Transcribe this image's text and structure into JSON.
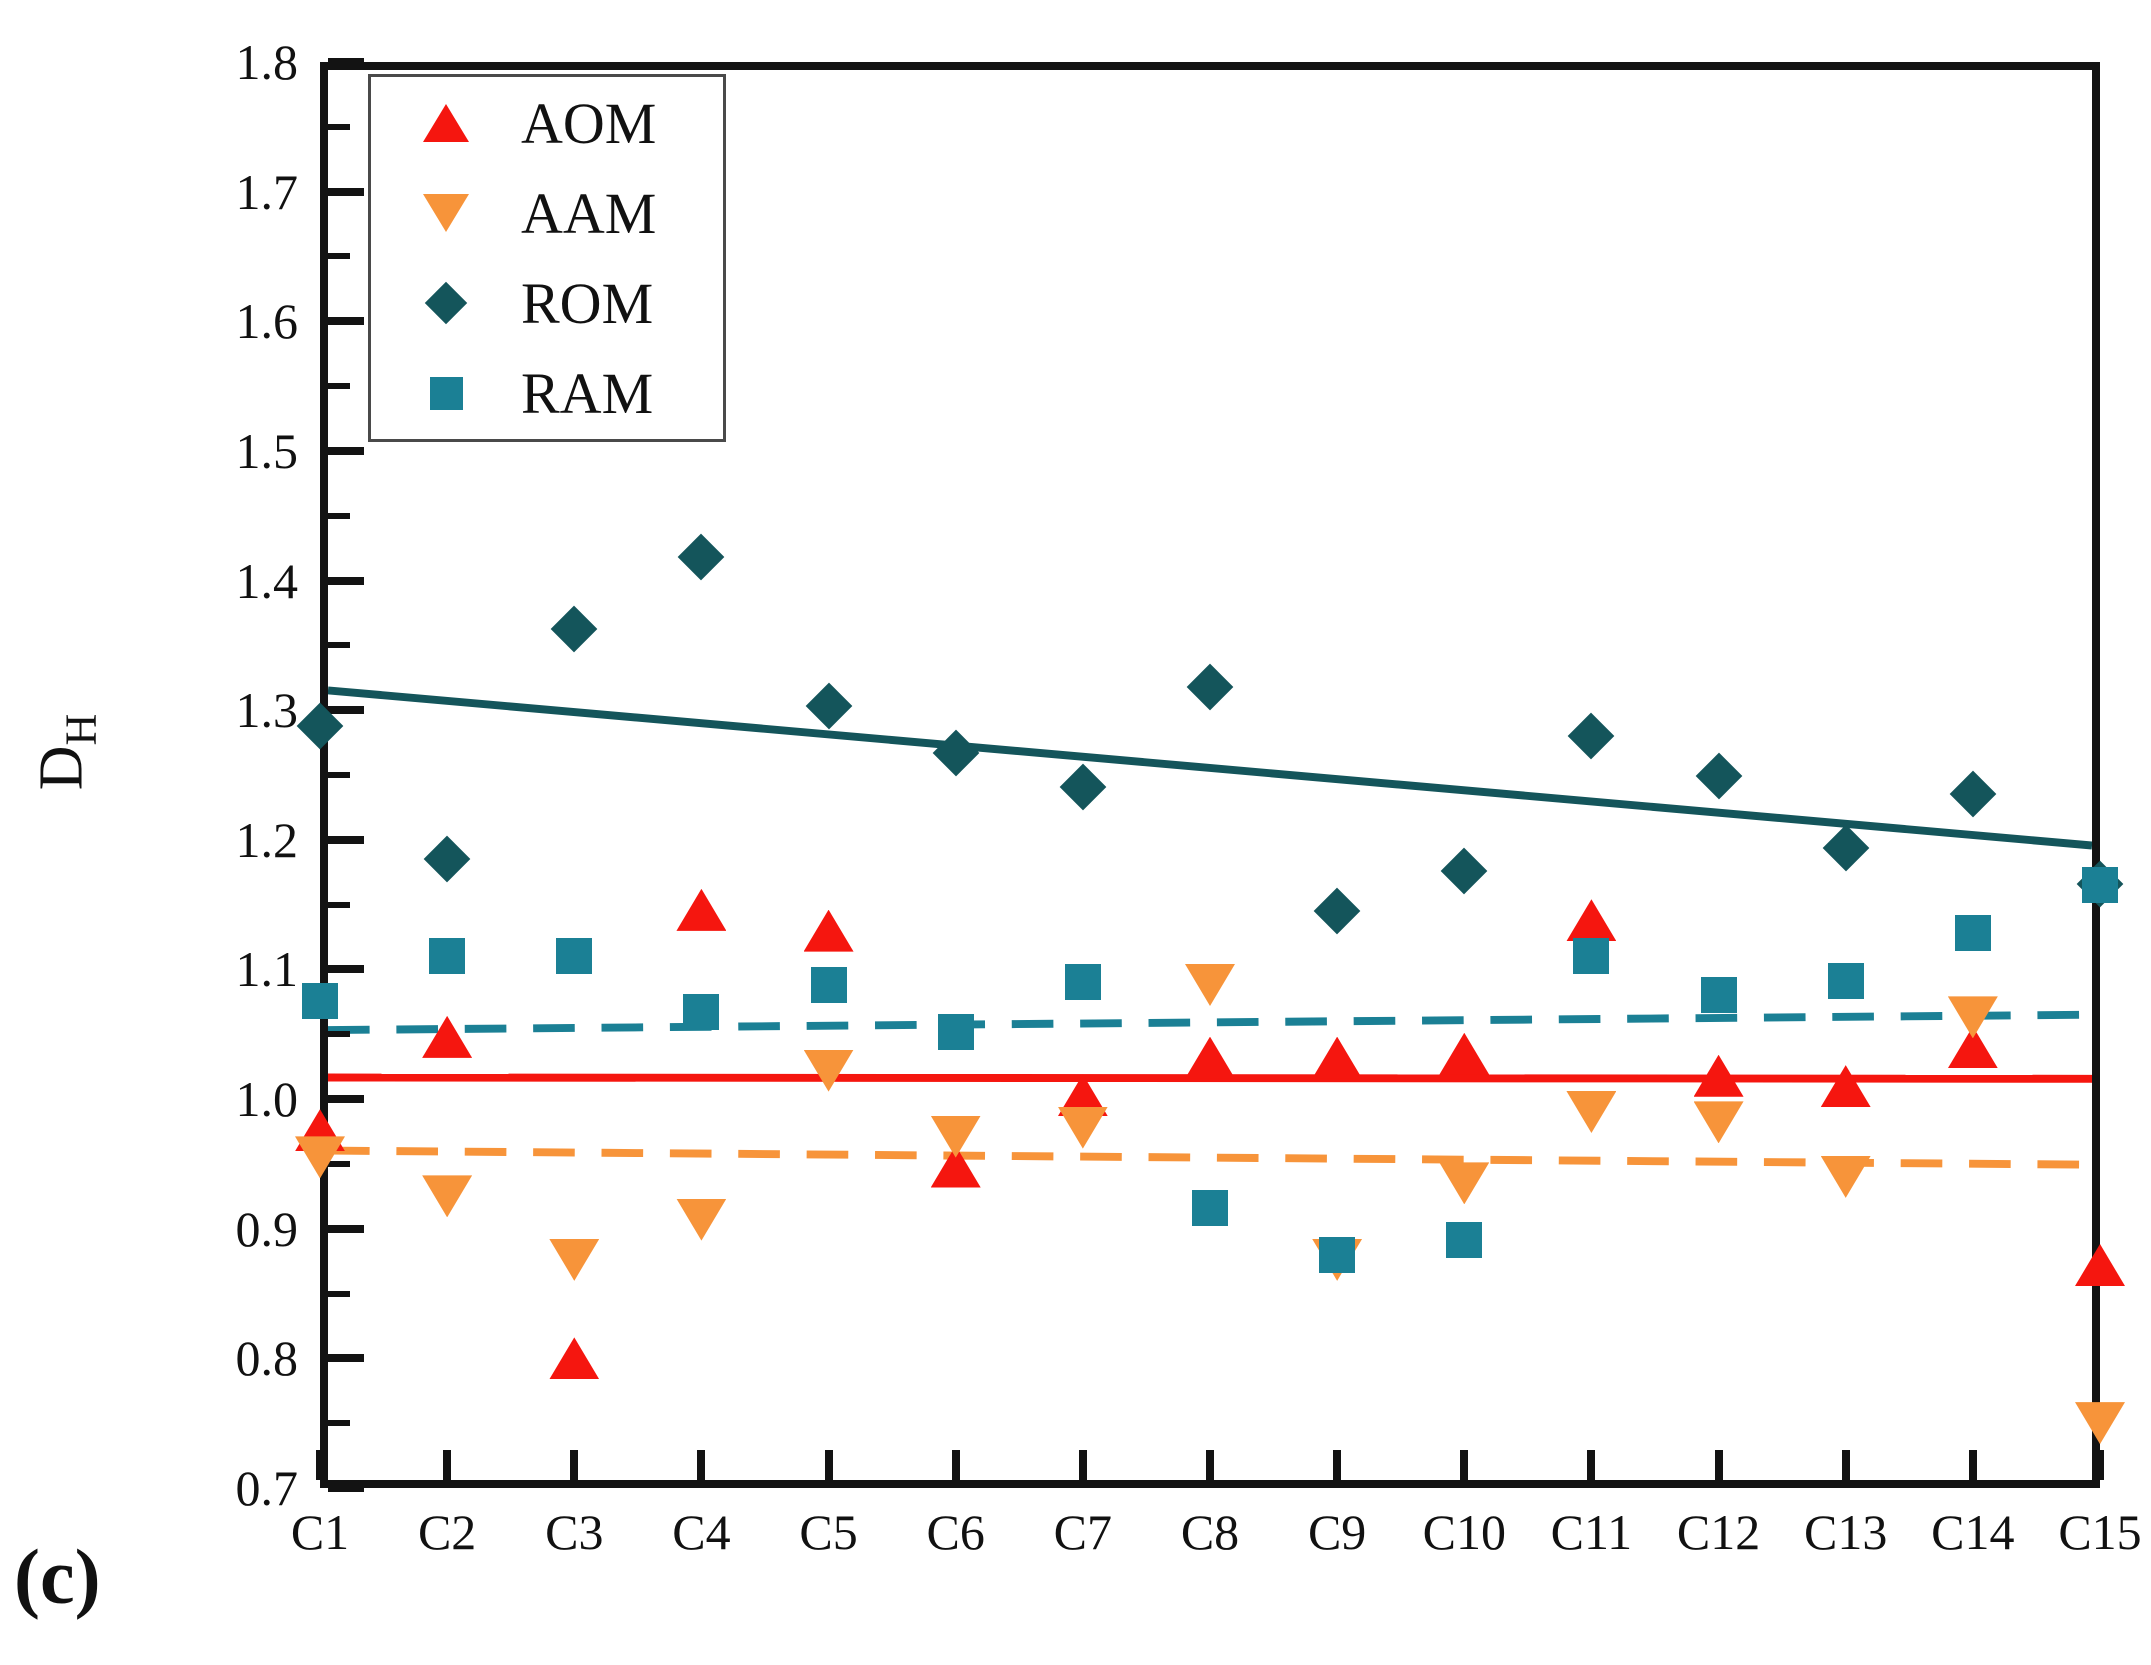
{
  "labels": {
    "figure": "(c)"
  },
  "axes": {
    "y_label_base": "D",
    "y_label_sub": "H",
    "y_min": 0.7,
    "y_max": 1.8,
    "y_major_step": 0.1,
    "y_minor_step": 0.05,
    "y_tick_labels": [
      "0.7",
      "0.8",
      "0.9",
      "1.0",
      "1.1",
      "1.2",
      "1.3",
      "1.4",
      "1.5",
      "1.6",
      "1.7",
      "1.8"
    ],
    "x_tick_labels": [
      "C1",
      "C2",
      "C3",
      "C4",
      "C5",
      "C6",
      "C7",
      "C8",
      "C9",
      "C10",
      "C11",
      "C12",
      "C13",
      "C14",
      "C15"
    ]
  },
  "chart_data": {
    "type": "scatter",
    "title": "",
    "xlabel": "",
    "ylabel": "D_H",
    "ylim": [
      0.7,
      1.8
    ],
    "grid": false,
    "legend_position": "upper-left",
    "categories": [
      "C1",
      "C2",
      "C3",
      "C4",
      "C5",
      "C6",
      "C7",
      "C8",
      "C9",
      "C10",
      "C11",
      "C12",
      "C13",
      "C14",
      "C15"
    ],
    "series": [
      {
        "name": "AOM",
        "marker": "triangle-up",
        "color": "#f5160f",
        "values": [
          0.976,
          1.048,
          0.8,
          1.146,
          1.13,
          0.948,
          1.003,
          1.032,
          1.032,
          1.035,
          1.138,
          1.018,
          1.01,
          1.04,
          0.872
        ],
        "trend": {
          "style": "solid",
          "color": "#f5160f",
          "y_start": 1.014,
          "y_end": 1.013
        }
      },
      {
        "name": "AAM",
        "marker": "triangle-down",
        "color": "#f7943a",
        "values": [
          0.955,
          0.925,
          0.876,
          0.907,
          1.022,
          0.971,
          0.978,
          1.088,
          0.876,
          0.935,
          0.99,
          0.982,
          0.94,
          1.063,
          0.75
        ],
        "trend": {
          "style": "dashed",
          "color": "#f7943a",
          "y_start": 0.957,
          "y_end": 0.946
        }
      },
      {
        "name": "ROM",
        "marker": "diamond",
        "color": "#14555b",
        "values": [
          1.288,
          1.185,
          1.363,
          1.418,
          1.303,
          1.267,
          1.241,
          1.318,
          1.145,
          1.176,
          1.28,
          1.249,
          1.194,
          1.235,
          1.166
        ],
        "trend": {
          "style": "solid",
          "color": "#14555b",
          "y_start": 1.316,
          "y_end": 1.195
        }
      },
      {
        "name": "RAM",
        "marker": "square",
        "color": "#1b8095",
        "values": [
          1.076,
          1.11,
          1.11,
          1.067,
          1.088,
          1.052,
          1.09,
          0.916,
          0.88,
          0.891,
          1.11,
          1.08,
          1.091,
          1.128,
          1.165
        ],
        "trend": {
          "style": "dashed",
          "color": "#1b8095",
          "y_start": 1.051,
          "y_end": 1.063
        }
      }
    ]
  }
}
